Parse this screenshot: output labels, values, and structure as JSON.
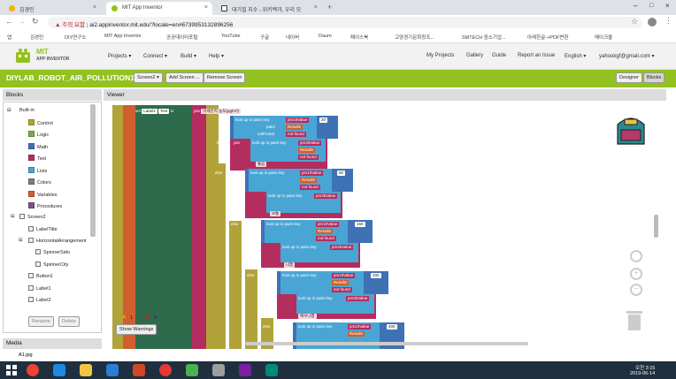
{
  "browser": {
    "tabs": [
      {
        "label": "김경민",
        "active": false
      },
      {
        "label": "MIT App Inventor",
        "active": true
      },
      {
        "label": "대기질 지수 - 위키백과, 우리 모",
        "active": false
      }
    ],
    "new_tab": "+",
    "security_label": "주의 요함",
    "url": "ai2.appinventor.mit.edu/?locale=en#6739953132896256",
    "bookmarks": [
      "앱",
      "김경민",
      "DIY연구소",
      "MIT App Inventor",
      "공공데이터포털",
      "YouTube",
      "구글",
      "네이버",
      "Daum",
      "페이스북",
      "고양경기문화창조...",
      "SMTECH 중소기업...",
      "아래한글->PDF변환",
      "메이크올"
    ]
  },
  "app": {
    "logo_line1": "MIT",
    "logo_line2": "APP INVENTOR",
    "menus": [
      "Projects ▾",
      "Connect ▾",
      "Build ▾",
      "Help ▾"
    ],
    "right_links": [
      "My Projects",
      "Gallery",
      "Guide",
      "Report an Issue",
      "English ▾",
      "yahookgf@gmail.com ▾"
    ],
    "project_name": "DIYLAB_ROBOT_AIR_POLLUTION1",
    "screen_select": "Screen2 ▾",
    "add_screen": "Add Screen ...",
    "remove_screen": "Remove Screen",
    "designer": "Designer",
    "blocks": "Blocks"
  },
  "panels": {
    "blocks_title": "Blocks",
    "viewer_title": "Viewer",
    "media_title": "Media",
    "media_item": "A1.jpg",
    "rename": "Rename",
    "delete": "Delete",
    "show_warnings": "Show Warnings",
    "warn_count": "1",
    "error_count": "0"
  },
  "builtin": {
    "label": "Built-in",
    "items": [
      {
        "label": "Control",
        "color": "#b1a33a"
      },
      {
        "label": "Logic",
        "color": "#77ab41"
      },
      {
        "label": "Math",
        "color": "#3f71b5"
      },
      {
        "label": "Text",
        "color": "#b32d5e"
      },
      {
        "label": "Lists",
        "color": "#49a6d4"
      },
      {
        "label": "Colors",
        "color": "#7d7d7d"
      },
      {
        "label": "Variables",
        "color": "#d05f2d"
      },
      {
        "label": "Procedures",
        "color": "#7c5385"
      }
    ]
  },
  "components": {
    "root": "Screen2",
    "items": [
      "LabelTitle",
      "HorizontalArrangement",
      "SpinnerSido",
      "SpinnerCity",
      "Button1",
      "Label1",
      "Label2"
    ]
  },
  "code": {
    "set_label": "set",
    "label_component": "Label1",
    "text_prop": "Text",
    "to_label": "to",
    "join_label": "join",
    "join_text": "미세먼지 농도(µg/m³)",
    "if_label": "if",
    "then_label": "then",
    "else_label": "else",
    "lookup_label": "look up in pairs  key",
    "pairs_label": "pairs",
    "notfound_label": "notFound",
    "key_value": "pm10Value",
    "pm25_value": "pm25Value",
    "get_label": "get",
    "results_var": "Results",
    "not_found": "not found",
    "thresholds": [
      "30",
      "80",
      "150",
      "200",
      "400"
    ],
    "grades": [
      "좋음",
      "보통",
      "나쁨",
      "매우나쁨",
      "위험"
    ]
  },
  "taskbar": {
    "time": "오전 3:15",
    "date": "2019-06-14"
  }
}
